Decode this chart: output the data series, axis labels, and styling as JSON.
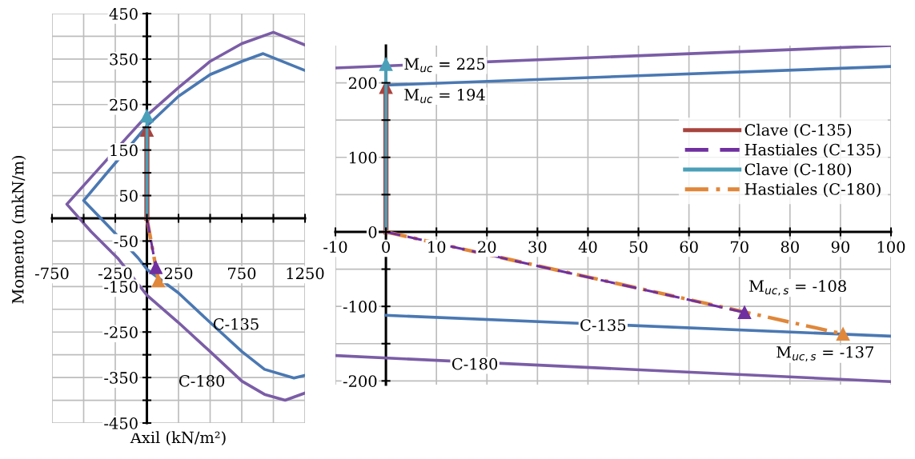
{
  "chart_data": [
    {
      "type": "line",
      "xlabel": "Axil (kN/m²)",
      "ylabel": "Momento (mkN/m)",
      "xlim": [
        -750,
        1250
      ],
      "ylim": [
        -450,
        450
      ],
      "xticks": [
        -750,
        {
          "value": -500,
          "label": null
        },
        -250,
        {
          "value": 0,
          "label": null
        },
        250,
        {
          "value": 500,
          "label": null
        },
        750,
        {
          "value": 1000,
          "label": null
        },
        1250
      ],
      "yticks": [
        -450,
        {
          "value": -400,
          "label": null
        },
        -350,
        {
          "value": -300,
          "label": null
        },
        -250,
        {
          "value": -200,
          "label": null
        },
        -150,
        {
          "value": -100,
          "label": null
        },
        -50,
        {
          "value": 0,
          "label": null
        },
        50,
        {
          "value": 100,
          "label": null
        },
        150,
        {
          "value": 200,
          "label": null
        },
        250,
        {
          "value": 300,
          "label": null
        },
        350,
        {
          "value": 400,
          "label": null
        },
        450
      ],
      "grid": true,
      "legend": false,
      "series": [
        {
          "color": "#4a78b2",
          "line_style": "solid",
          "marker": "none",
          "x": [
            1250,
            919,
            751,
            500,
            249,
            0,
            -300,
            -500,
            -291,
            -70,
            0,
            249,
            500,
            751,
            930,
            1163,
            1250
          ],
          "values": [
            325,
            362,
            345,
            316,
            268,
            203,
            105,
            39,
            -21,
            -87,
            -112,
            -164,
            -229,
            -293,
            -332,
            -351,
            -345
          ]
        },
        {
          "color": "#7b5da6",
          "line_style": "solid",
          "marker": "none",
          "x": [
            1250,
            1000,
            751,
            500,
            249,
            0,
            -151,
            -633,
            -442,
            -233,
            0,
            249,
            500,
            751,
            930,
            1093,
            1250
          ],
          "values": [
            381,
            409,
            384,
            345,
            287,
            226,
            180,
            31,
            -29,
            -87,
            -169,
            -229,
            -293,
            -358,
            -387,
            -400,
            -384
          ]
        },
        {
          "color": "#a8443f",
          "line_style": "solid",
          "marker": "triangle",
          "x": [
            0,
            0
          ],
          "values": [
            0,
            194
          ]
        },
        {
          "color": "#7030a0",
          "line_style": "dashed",
          "marker": "triangle",
          "x": [
            0,
            71
          ],
          "values": [
            0,
            -108
          ]
        },
        {
          "color": "#4aa0b8",
          "line_style": "solid",
          "marker": "triangle",
          "x": [
            0,
            0
          ],
          "values": [
            0,
            225
          ]
        },
        {
          "color": "#e0873a",
          "line_style": "dashdot",
          "marker": "triangle",
          "x": [
            0,
            90.5
          ],
          "values": [
            0,
            -137
          ]
        }
      ],
      "annotations": [
        {
          "text": "C-135",
          "x": 600,
          "y": -255
        },
        {
          "text": "C-180",
          "x": 751,
          "y": -358
        }
      ]
    },
    {
      "type": "line",
      "xlim": [
        -10,
        100
      ],
      "ylim": [
        -205,
        250
      ],
      "xticks": [
        -10,
        0,
        10,
        20,
        30,
        40,
        50,
        60,
        70,
        80,
        90,
        100
      ],
      "yticks": [
        -200,
        {
          "value": -150,
          "label": null
        },
        -100,
        {
          "value": -50,
          "label": null
        },
        0,
        {
          "value": 50,
          "label": null
        },
        100,
        {
          "value": 150,
          "label": null
        },
        200
      ],
      "grid": true,
      "legend": "right",
      "series": [
        {
          "color": "#4a78b2",
          "line_style": "solid",
          "marker": "none",
          "x": [
            0,
            100
          ],
          "values": [
            197,
            222
          ]
        },
        {
          "color": "#4a78b2",
          "line_style": "solid",
          "marker": "none",
          "x": [
            0,
            100
          ],
          "values": [
            -112,
            -140
          ]
        },
        {
          "color": "#7b5da6",
          "line_style": "solid",
          "marker": "none",
          "x": [
            -10,
            100
          ],
          "values": [
            220,
            250
          ]
        },
        {
          "color": "#7b5da6",
          "line_style": "solid",
          "marker": "none",
          "x": [
            -10,
            100
          ],
          "values": [
            -166,
            -201
          ]
        },
        {
          "name": "Clave (C-135)",
          "color": "#a8443f",
          "line_style": "solid",
          "marker": "triangle",
          "x": [
            0,
            0
          ],
          "values": [
            0,
            194
          ]
        },
        {
          "name": "Hastiales (C-135)",
          "color": "#7030a0",
          "line_style": "dashed",
          "marker": "triangle",
          "x": [
            0,
            71
          ],
          "values": [
            0,
            -108
          ]
        },
        {
          "name": "Clave (C-180)",
          "color": "#4aa0b8",
          "line_style": "solid",
          "marker": "triangle",
          "x": [
            0,
            0
          ],
          "values": [
            0,
            225
          ]
        },
        {
          "name": "Hastiales (C-180)",
          "color": "#e0873a",
          "line_style": "dashdot",
          "marker": "triangle",
          "x": [
            0,
            90.5
          ],
          "values": [
            0,
            -137
          ]
        }
      ],
      "annotations": [
        {
          "text": "M$_{uc}$ = 225",
          "x": 0,
          "y": 225
        },
        {
          "text": "M$_{uc}$ = 194",
          "x": 0,
          "y": 194
        },
        {
          "text": "M$_{uc,s}$ = -108",
          "x": 71,
          "y": -108
        },
        {
          "text": "M$_{uc,s}$ = -137",
          "x": 90.5,
          "y": -137
        },
        {
          "text": "C-135",
          "x": 43,
          "y": -127
        },
        {
          "text": "C-180",
          "x": 17.6,
          "y": -179
        }
      ]
    }
  ]
}
